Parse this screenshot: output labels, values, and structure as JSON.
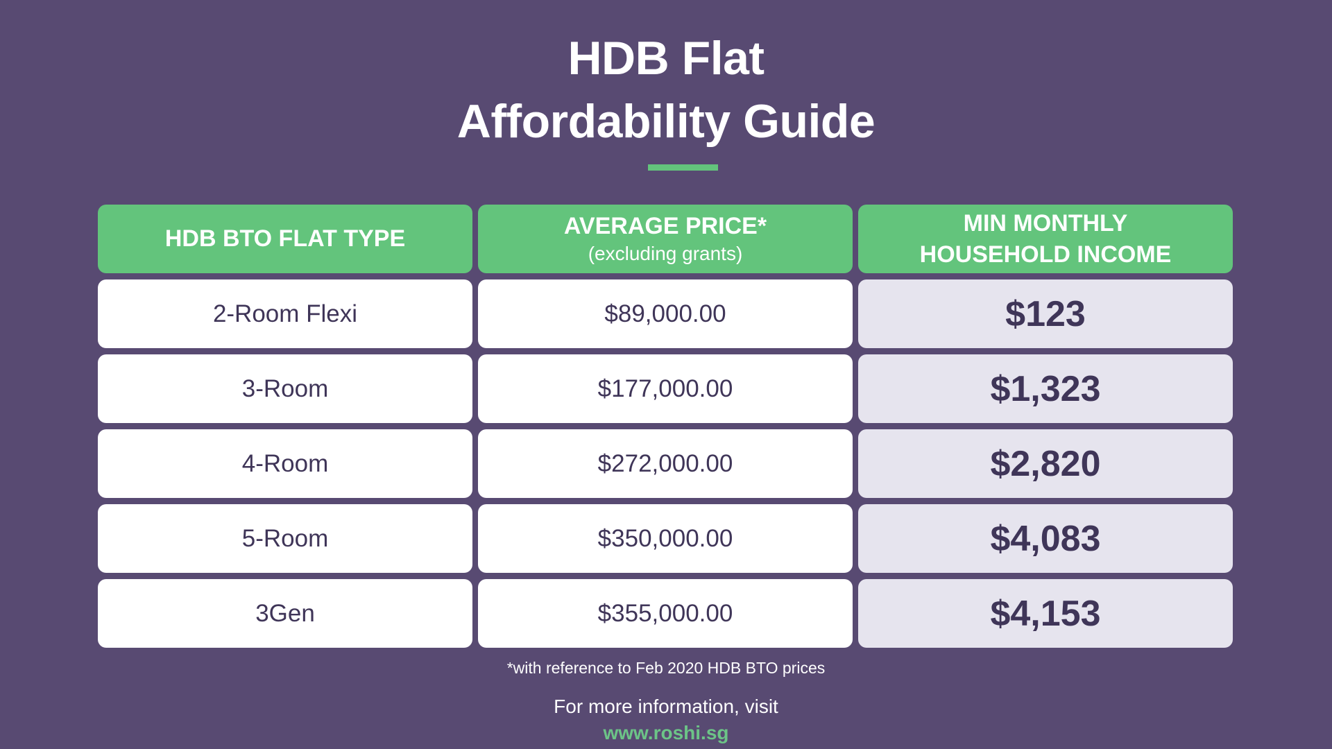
{
  "title": {
    "line1": "HDB Flat",
    "line2": "Affordability Guide"
  },
  "colors": {
    "background": "#584a72",
    "accent": "#63c47c",
    "text_dark": "#3f3558",
    "income_cell": "#e6e4ee",
    "link": "#6cc487"
  },
  "table": {
    "headers": [
      {
        "label": "HDB BTO FLAT TYPE",
        "sub": ""
      },
      {
        "label": "AVERAGE  PRICE*",
        "sub": "(excluding grants)"
      },
      {
        "label": "MIN MONTHLY",
        "sub": "HOUSEHOLD INCOME"
      }
    ],
    "rows": [
      {
        "type": "2-Room Flexi",
        "price": "$89,000.00",
        "income": "$123"
      },
      {
        "type": "3-Room",
        "price": "$177,000.00",
        "income": "$1,323"
      },
      {
        "type": "4-Room",
        "price": "$272,000.00",
        "income": "$2,820"
      },
      {
        "type": "5-Room",
        "price": "$350,000.00",
        "income": "$4,083"
      },
      {
        "type": "3Gen",
        "price": "$355,000.00",
        "income": "$4,153"
      }
    ]
  },
  "footnote": "*with reference to Feb 2020 HDB BTO prices",
  "info": {
    "text": "For more information, visit",
    "url": "www.roshi.sg"
  }
}
